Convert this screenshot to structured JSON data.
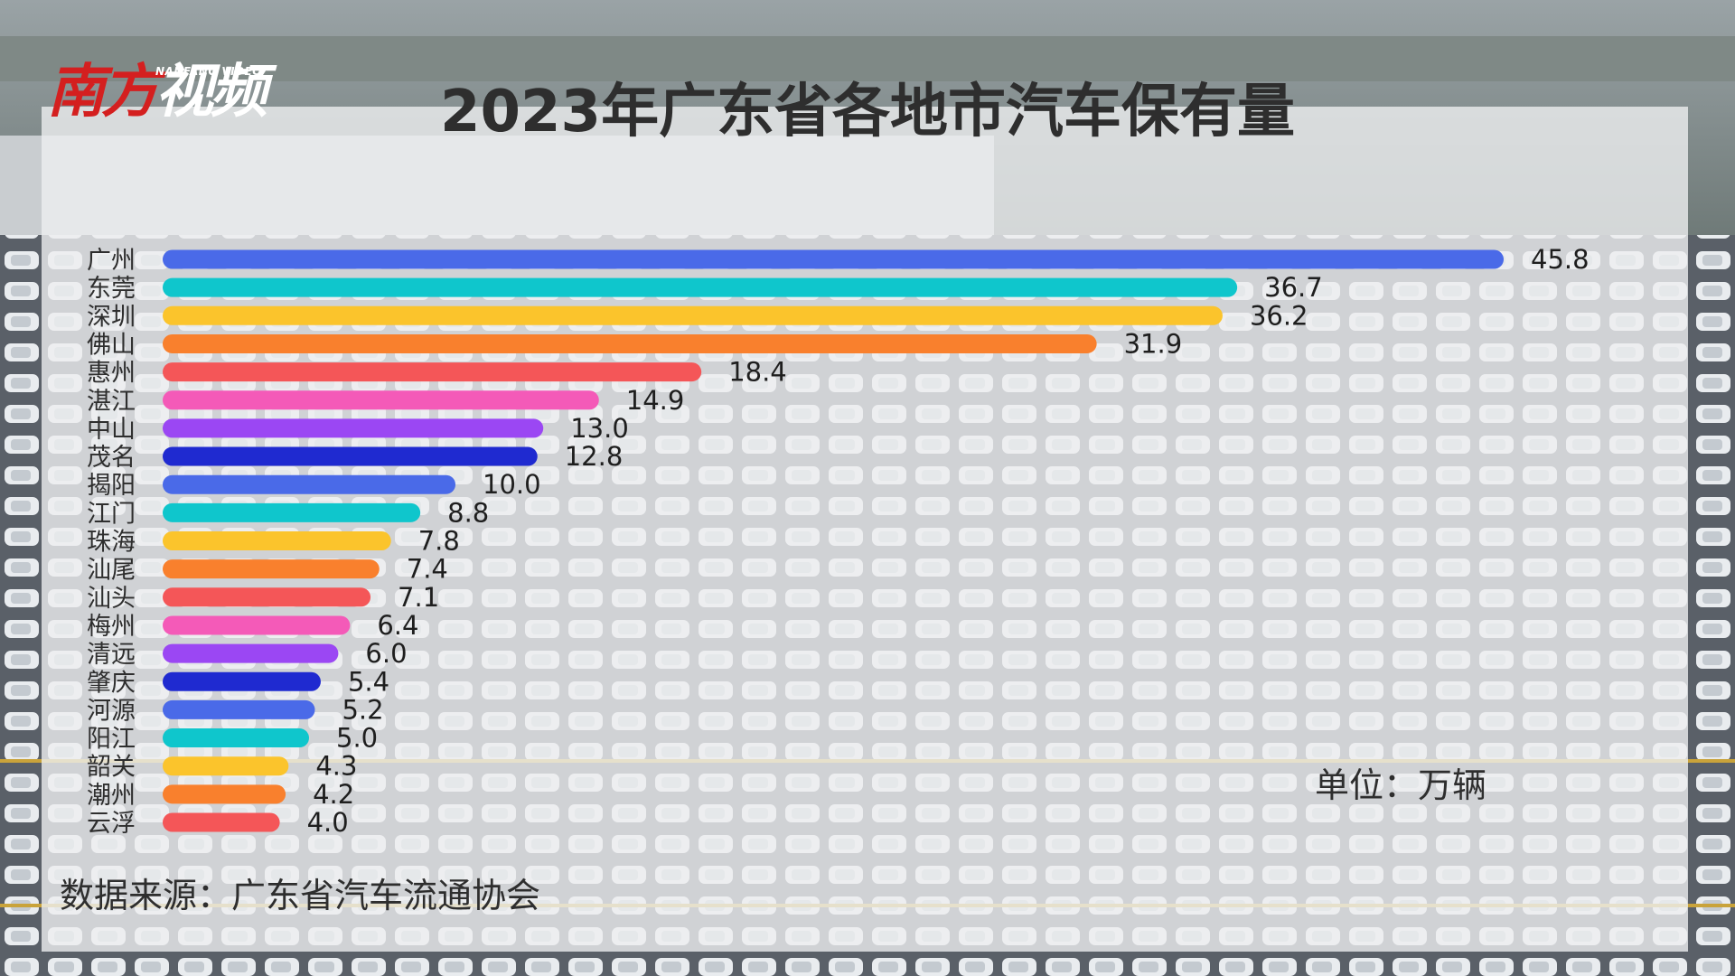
{
  "logo": {
    "part1": "南方",
    "part2": "视频",
    "sub": "NANFANG VIDEO"
  },
  "colors": {
    "palette": [
      "#4a6ae8",
      "#0fc6cc",
      "#fbc42c",
      "#f9802d",
      "#f45658",
      "#f45ab8",
      "#9b47f3",
      "#1f2ad0"
    ]
  },
  "chart_data": {
    "type": "bar",
    "orientation": "horizontal",
    "title": "2023年广东省各地市汽车保有量",
    "unit": "单位：万辆",
    "source": "数据来源：广东省汽车流通协会",
    "categories": [
      "广州",
      "东莞",
      "深圳",
      "佛山",
      "惠州",
      "湛江",
      "中山",
      "茂名",
      "揭阳",
      "江门",
      "珠海",
      "汕尾",
      "汕头",
      "梅州",
      "清远",
      "肇庆",
      "河源",
      "阳江",
      "韶关",
      "潮州",
      "云浮"
    ],
    "values": [
      45.8,
      36.7,
      36.2,
      31.9,
      18.4,
      14.9,
      13.0,
      12.8,
      10.0,
      8.8,
      7.8,
      7.4,
      7.1,
      6.4,
      6.0,
      5.4,
      5.2,
      5.0,
      4.3,
      4.2,
      4.0
    ],
    "value_labels": [
      "45.8",
      "36.7",
      "36.2",
      "31.9",
      "18.4",
      "14.9",
      "13.0",
      "12.8",
      "10.0",
      "8.8",
      "7.8",
      "7.4",
      "7.1",
      "6.4",
      "6.0",
      "5.4",
      "5.2",
      "5.0",
      "4.3",
      "4.2",
      "4.0"
    ],
    "xlim": [
      0,
      45.8
    ],
    "grid": false,
    "legend": "none"
  }
}
